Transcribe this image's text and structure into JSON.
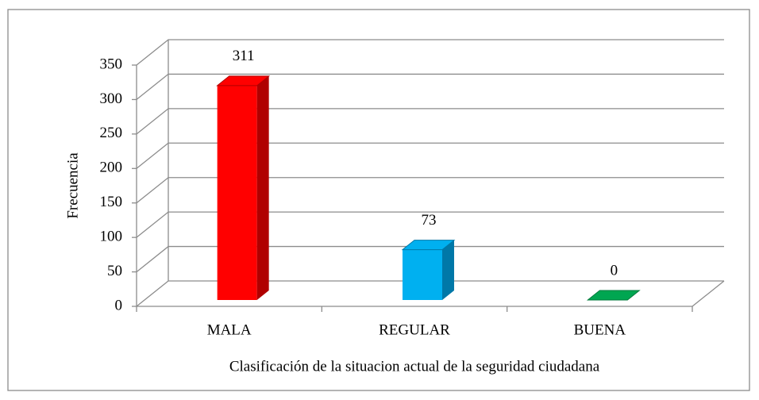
{
  "chart_data": {
    "type": "bar3d",
    "categories": [
      "MALA",
      "REGULAR",
      "BUENA"
    ],
    "values": [
      311,
      73,
      0
    ],
    "colors": [
      "#ff0000",
      "#00b0f0",
      "#00a651"
    ],
    "side_colors": [
      "#b00000",
      "#0078a8",
      "#007a3b"
    ],
    "ylabel": "Frecuencia",
    "xlabel": "Clasificación de la situacion actual de la seguridad ciudadana",
    "ylim": [
      0,
      350
    ],
    "yticks": [
      0,
      50,
      100,
      150,
      200,
      250,
      300,
      350
    ],
    "grid": true
  }
}
